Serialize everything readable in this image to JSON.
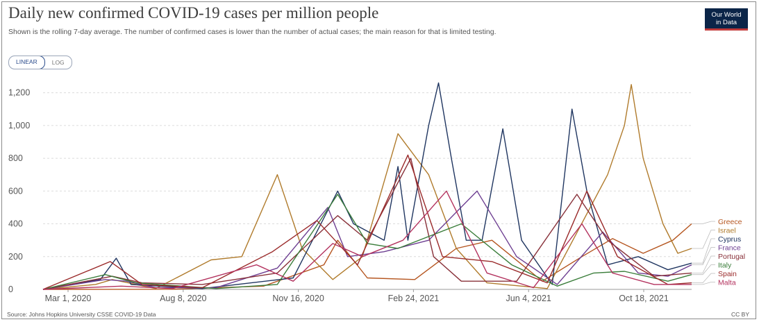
{
  "header": {
    "title": "Daily new confirmed COVID-19 cases per million people",
    "subtitle": "Shown is the rolling 7-day average. The number of confirmed cases is lower than the number of actual cases; the main reason for that is limited testing.",
    "logo_line1": "Our World",
    "logo_line2": "in Data"
  },
  "controls": {
    "linear_label": "LINEAR",
    "log_label": "LOG"
  },
  "footer": {
    "source": "Source: Johns Hopkins University CSSE COVID-19 Data",
    "license": "CC BY"
  },
  "chart_data": {
    "type": "line",
    "title": "Daily new confirmed COVID-19 cases per million people",
    "xlabel": "",
    "ylabel": "",
    "x_ticks": [
      "Mar 1, 2020",
      "Aug 8, 2020",
      "Nov 16, 2020",
      "Feb 24, 2021",
      "Jun 4, 2021",
      "Oct 18, 2021"
    ],
    "y_ticks": [
      "0",
      "200",
      "400",
      "600",
      "800",
      "1,000",
      "1,200"
    ],
    "xlim": [
      "2020-01-22",
      "2021-11-08"
    ],
    "ylim": [
      0,
      1300
    ],
    "grid": true,
    "legend_position": "right",
    "series": [
      {
        "name": "Greece",
        "color": "#b5551f",
        "points": [
          [
            "2020-01-22",
            0
          ],
          [
            "2020-06-01",
            1
          ],
          [
            "2020-09-01",
            20
          ],
          [
            "2020-11-01",
            150
          ],
          [
            "2020-11-15",
            300
          ],
          [
            "2020-12-15",
            70
          ],
          [
            "2021-02-01",
            60
          ],
          [
            "2021-03-15",
            250
          ],
          [
            "2021-04-20",
            300
          ],
          [
            "2021-06-10",
            50
          ],
          [
            "2021-07-20",
            200
          ],
          [
            "2021-08-20",
            310
          ],
          [
            "2021-09-20",
            220
          ],
          [
            "2021-10-20",
            300
          ],
          [
            "2021-11-08",
            400
          ]
        ]
      },
      {
        "name": "Israel",
        "color": "#b07b2c",
        "points": [
          [
            "2020-01-22",
            0
          ],
          [
            "2020-03-15",
            30
          ],
          [
            "2020-04-01",
            60
          ],
          [
            "2020-05-15",
            5
          ],
          [
            "2020-07-10",
            180
          ],
          [
            "2020-08-10",
            200
          ],
          [
            "2020-09-15",
            700
          ],
          [
            "2020-10-10",
            250
          ],
          [
            "2020-11-10",
            60
          ],
          [
            "2020-12-10",
            200
          ],
          [
            "2021-01-15",
            950
          ],
          [
            "2021-02-15",
            700
          ],
          [
            "2021-03-15",
            250
          ],
          [
            "2021-04-15",
            40
          ],
          [
            "2021-06-15",
            5
          ],
          [
            "2021-08-15",
            700
          ],
          [
            "2021-09-01",
            1000
          ],
          [
            "2021-09-08",
            1250
          ],
          [
            "2021-09-20",
            800
          ],
          [
            "2021-10-10",
            400
          ],
          [
            "2021-10-25",
            220
          ],
          [
            "2021-11-08",
            250
          ]
        ]
      },
      {
        "name": "Cyprus",
        "color": "#1f3560",
        "points": [
          [
            "2020-01-22",
            0
          ],
          [
            "2020-03-20",
            60
          ],
          [
            "2020-04-05",
            190
          ],
          [
            "2020-04-20",
            30
          ],
          [
            "2020-07-01",
            5
          ],
          [
            "2020-10-01",
            70
          ],
          [
            "2020-11-15",
            600
          ],
          [
            "2020-12-01",
            400
          ],
          [
            "2021-01-01",
            300
          ],
          [
            "2021-01-15",
            750
          ],
          [
            "2021-01-25",
            300
          ],
          [
            "2021-02-15",
            1000
          ],
          [
            "2021-02-25",
            1260
          ],
          [
            "2021-03-10",
            800
          ],
          [
            "2021-03-25",
            300
          ],
          [
            "2021-04-10",
            300
          ],
          [
            "2021-05-01",
            980
          ],
          [
            "2021-05-20",
            300
          ],
          [
            "2021-06-20",
            30
          ],
          [
            "2021-07-10",
            1100
          ],
          [
            "2021-07-25",
            600
          ],
          [
            "2021-08-15",
            150
          ],
          [
            "2021-09-15",
            200
          ],
          [
            "2021-10-15",
            120
          ],
          [
            "2021-11-08",
            160
          ]
        ]
      },
      {
        "name": "France",
        "color": "#6d3e91",
        "points": [
          [
            "2020-01-22",
            0
          ],
          [
            "2020-03-25",
            60
          ],
          [
            "2020-04-15",
            50
          ],
          [
            "2020-05-15",
            10
          ],
          [
            "2020-07-15",
            10
          ],
          [
            "2020-09-15",
            130
          ],
          [
            "2020-11-05",
            500
          ],
          [
            "2020-11-25",
            200
          ],
          [
            "2021-01-01",
            230
          ],
          [
            "2021-02-15",
            300
          ],
          [
            "2021-04-05",
            600
          ],
          [
            "2021-05-15",
            200
          ],
          [
            "2021-06-25",
            30
          ],
          [
            "2021-08-10",
            350
          ],
          [
            "2021-09-15",
            100
          ],
          [
            "2021-10-15",
            80
          ],
          [
            "2021-11-08",
            150
          ]
        ]
      },
      {
        "name": "Portugal",
        "color": "#883039",
        "points": [
          [
            "2020-01-22",
            0
          ],
          [
            "2020-04-01",
            80
          ],
          [
            "2020-05-01",
            40
          ],
          [
            "2020-07-01",
            30
          ],
          [
            "2020-09-15",
            100
          ],
          [
            "2020-11-15",
            450
          ],
          [
            "2020-12-15",
            300
          ],
          [
            "2021-01-28",
            800
          ],
          [
            "2021-02-20",
            200
          ],
          [
            "2021-03-20",
            50
          ],
          [
            "2021-05-15",
            50
          ],
          [
            "2021-07-15",
            580
          ],
          [
            "2021-08-15",
            300
          ],
          [
            "2021-10-01",
            80
          ],
          [
            "2021-11-08",
            100
          ]
        ]
      },
      {
        "name": "Italy",
        "color": "#3a7d3a",
        "points": [
          [
            "2020-01-22",
            0
          ],
          [
            "2020-03-25",
            90
          ],
          [
            "2020-04-25",
            40
          ],
          [
            "2020-07-15",
            5
          ],
          [
            "2020-09-15",
            30
          ],
          [
            "2020-11-15",
            580
          ],
          [
            "2020-12-15",
            280
          ],
          [
            "2021-01-15",
            250
          ],
          [
            "2021-03-20",
            400
          ],
          [
            "2021-05-10",
            150
          ],
          [
            "2021-06-25",
            20
          ],
          [
            "2021-08-01",
            100
          ],
          [
            "2021-09-01",
            110
          ],
          [
            "2021-10-15",
            50
          ],
          [
            "2021-11-08",
            90
          ]
        ]
      },
      {
        "name": "Spain",
        "color": "#9a2a2a",
        "points": [
          [
            "2020-01-22",
            0
          ],
          [
            "2020-03-30",
            170
          ],
          [
            "2020-05-01",
            30
          ],
          [
            "2020-07-01",
            10
          ],
          [
            "2020-09-10",
            230
          ],
          [
            "2020-10-25",
            420
          ],
          [
            "2020-12-05",
            150
          ],
          [
            "2021-01-25",
            820
          ],
          [
            "2021-03-01",
            200
          ],
          [
            "2021-04-20",
            170
          ],
          [
            "2021-06-15",
            40
          ],
          [
            "2021-07-25",
            600
          ],
          [
            "2021-08-25",
            200
          ],
          [
            "2021-10-15",
            30
          ],
          [
            "2021-11-08",
            40
          ]
        ]
      },
      {
        "name": "Malta",
        "color": "#b3325e",
        "points": [
          [
            "2020-01-22",
            0
          ],
          [
            "2020-04-10",
            20
          ],
          [
            "2020-06-01",
            5
          ],
          [
            "2020-08-25",
            150
          ],
          [
            "2020-10-01",
            50
          ],
          [
            "2020-11-10",
            280
          ],
          [
            "2020-12-10",
            200
          ],
          [
            "2021-01-20",
            300
          ],
          [
            "2021-03-05",
            600
          ],
          [
            "2021-04-15",
            100
          ],
          [
            "2021-06-01",
            10
          ],
          [
            "2021-07-20",
            400
          ],
          [
            "2021-08-20",
            100
          ],
          [
            "2021-10-01",
            30
          ],
          [
            "2021-11-08",
            30
          ]
        ]
      }
    ]
  }
}
